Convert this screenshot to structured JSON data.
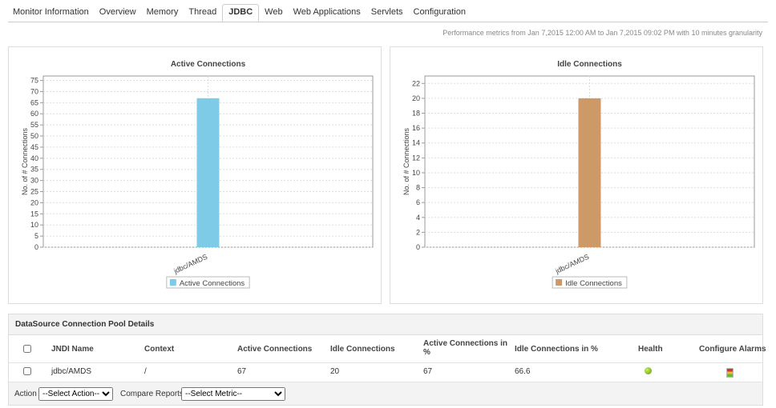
{
  "tabs": [
    {
      "label": "Monitor Information",
      "selected": false
    },
    {
      "label": "Overview",
      "selected": false
    },
    {
      "label": "Memory",
      "selected": false
    },
    {
      "label": "Thread",
      "selected": false
    },
    {
      "label": "JDBC",
      "selected": true
    },
    {
      "label": "Web",
      "selected": false
    },
    {
      "label": "Web Applications",
      "selected": false
    },
    {
      "label": "Servlets",
      "selected": false
    },
    {
      "label": "Configuration",
      "selected": false
    }
  ],
  "period_note": "Performance metrics from Jan 7,2015 12:00 AM to Jan 7,2015 09:02 PM with 10 minutes granularity",
  "chart_data": [
    {
      "type": "bar",
      "title": "Active Connections",
      "y_label": "No. of # Connections",
      "categories": [
        "jdbc/AMDS"
      ],
      "series": [
        {
          "name": "Active Connections",
          "color": "#7ecbe7",
          "values": [
            67
          ]
        }
      ],
      "ylim": [
        0,
        77
      ],
      "yticks": [
        0,
        5,
        10,
        15,
        20,
        25,
        30,
        35,
        40,
        45,
        50,
        55,
        60,
        65,
        70,
        75
      ],
      "grid": true
    },
    {
      "type": "bar",
      "title": "Idle Connections",
      "y_label": "No. of # Connections",
      "categories": [
        "jdbc/AMDS"
      ],
      "series": [
        {
          "name": "Idle Connections",
          "color": "#cd9966",
          "values": [
            20
          ]
        }
      ],
      "ylim": [
        0,
        23
      ],
      "yticks": [
        0,
        2,
        4,
        6,
        8,
        10,
        12,
        14,
        16,
        18,
        20,
        22
      ],
      "grid": true
    }
  ],
  "table": {
    "title": "DataSource Connection Pool Details",
    "headers": [
      "JNDI Name",
      "Context",
      "Active Connections",
      "Idle Connections",
      "Active Connections in %",
      "Idle Connections in %",
      "Health",
      "Configure Alarms"
    ],
    "rows": [
      [
        "jdbc/AMDS",
        "/",
        "67",
        "20",
        "67",
        "66.6"
      ]
    ]
  },
  "footer": {
    "action_label": "Action",
    "action_select": "--Select Action--",
    "compare_label": "Compare Reports",
    "compare_select": "--Select Metric--"
  }
}
